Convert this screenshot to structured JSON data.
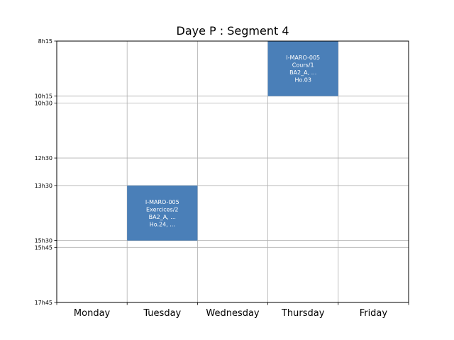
{
  "chart_data": {
    "type": "timetable",
    "title": "Daye P : Segment 4",
    "days": [
      "Monday",
      "Tuesday",
      "Wednesday",
      "Thursday",
      "Friday"
    ],
    "time_ticks": [
      {
        "label": "8h15",
        "value": 8.25
      },
      {
        "label": "10h15",
        "value": 10.25
      },
      {
        "label": "10h30",
        "value": 10.5
      },
      {
        "label": "12h30",
        "value": 12.5
      },
      {
        "label": "13h30",
        "value": 13.5
      },
      {
        "label": "15h30",
        "value": 15.5
      },
      {
        "label": "15h45",
        "value": 15.75
      },
      {
        "label": "17h45",
        "value": 17.75
      }
    ],
    "ylim": [
      8.25,
      17.75
    ],
    "grid": true,
    "event_color": "#4a7fb8",
    "events": [
      {
        "day_index": 3,
        "start": 8.25,
        "end": 10.25,
        "lines": [
          "I-MARO-005",
          "Cours/1",
          "BA2_A, ...",
          "Ho.03"
        ]
      },
      {
        "day_index": 1,
        "start": 13.5,
        "end": 15.5,
        "lines": [
          "I-MARO-005",
          "Exercices/2",
          "BA2_A, ...",
          "Ho.24, ..."
        ]
      }
    ]
  }
}
